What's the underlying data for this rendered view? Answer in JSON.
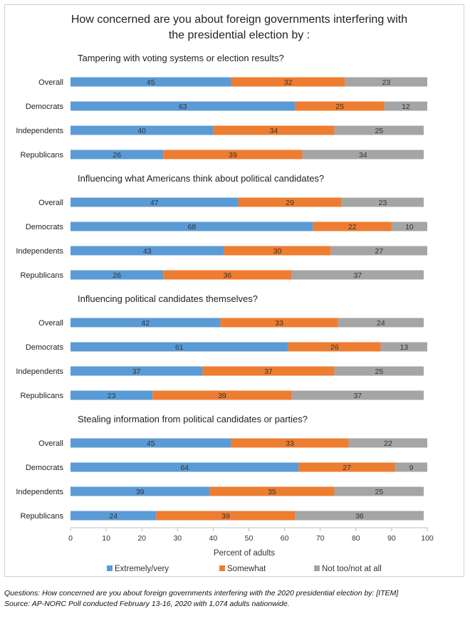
{
  "colors": {
    "extremely_very": "#5b9bd5",
    "somewhat": "#ed7d31",
    "not_too": "#a5a5a5"
  },
  "chart_data": {
    "type": "bar",
    "orientation": "horizontal",
    "stacked": true,
    "title_lines": [
      "How concerned are you about foreign governments interfering with",
      "the presidential election by :"
    ],
    "xlabel": "Percent of adults",
    "xlim": [
      0,
      100
    ],
    "xticks": [
      0,
      10,
      20,
      30,
      40,
      50,
      60,
      70,
      80,
      90,
      100
    ],
    "grid": false,
    "legend_position": "bottom",
    "series": [
      {
        "name": "Extremely/very",
        "color": "#5b9bd5"
      },
      {
        "name": "Somewhat",
        "color": "#ed7d31"
      },
      {
        "name": "Not too/not at all",
        "color": "#a5a5a5"
      }
    ],
    "groups": [
      {
        "title": "Tampering with voting systems or election results?",
        "rows": [
          {
            "label": "Overall",
            "values": [
              45,
              32,
              23
            ]
          },
          {
            "label": "Democrats",
            "values": [
              63,
              25,
              12
            ]
          },
          {
            "label": "Independents",
            "values": [
              40,
              34,
              25
            ]
          },
          {
            "label": "Republicans",
            "values": [
              26,
              39,
              34
            ]
          }
        ]
      },
      {
        "title": "Influencing what Americans think about political candidates?",
        "rows": [
          {
            "label": "Overall",
            "values": [
              47,
              29,
              23
            ]
          },
          {
            "label": "Democrats",
            "values": [
              68,
              22,
              10
            ]
          },
          {
            "label": "Independents",
            "values": [
              43,
              30,
              27
            ]
          },
          {
            "label": "Republicans",
            "values": [
              26,
              36,
              37
            ]
          }
        ]
      },
      {
        "title": "Influencing political candidates themselves?",
        "rows": [
          {
            "label": "Overall",
            "values": [
              42,
              33,
              24
            ]
          },
          {
            "label": "Democrats",
            "values": [
              61,
              26,
              13
            ]
          },
          {
            "label": "Independents",
            "values": [
              37,
              37,
              25
            ]
          },
          {
            "label": "Republicans",
            "values": [
              23,
              39,
              37
            ]
          }
        ]
      },
      {
        "title": "Stealing information from political candidates or parties?",
        "rows": [
          {
            "label": "Overall",
            "values": [
              45,
              33,
              22
            ]
          },
          {
            "label": "Democrats",
            "values": [
              64,
              27,
              9
            ]
          },
          {
            "label": "Independents",
            "values": [
              39,
              35,
              25
            ]
          },
          {
            "label": "Republicans",
            "values": [
              24,
              39,
              36
            ]
          }
        ]
      }
    ]
  },
  "footnotes": {
    "questions": "Questions: How concerned are you about foreign governments interfering with the 2020 presidential election by: [ITEM]",
    "source": "Source: AP-NORC Poll conducted February 13-16, 2020 with 1,074 adults nationwide."
  }
}
